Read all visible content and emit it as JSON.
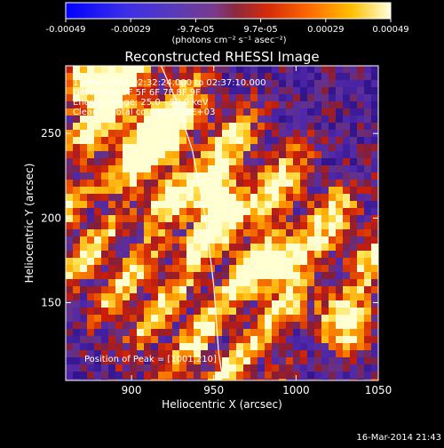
{
  "chart_data": {
    "type": "heatmap",
    "title": "Reconstructed RHESSI Image",
    "xlabel": "Heliocentric X (arcsec)",
    "ylabel": "Heliocentric Y (arcsec)",
    "xlim": [
      860,
      1050
    ],
    "ylim": [
      104,
      290
    ],
    "xticks": [
      900,
      950,
      1000,
      1050
    ],
    "yticks": [
      150,
      200,
      250
    ],
    "colorbar": {
      "ticks": [
        "-0.00049",
        "-0.00029",
        "-9.7e-05",
        "9.7e-05",
        "0.00029",
        "0.00049"
      ],
      "unit_label": "(photons cm⁻² s⁻¹ asec⁻²)",
      "range": [
        -0.00049,
        0.00049
      ],
      "colors": [
        "#0000ff",
        "#4b2bd0",
        "#6a3aa6",
        "#a82a30",
        "#e22a00",
        "#ff7a00",
        "#ffd000",
        "#ffffcc"
      ]
    },
    "annotations": [
      "17-Mar-2014 02:32:24.000 to 02:37:10.000",
      "Detectors: 3F 5F 6F 7F 8F 9F",
      "Energy Range: 25.0 - 50.0 keV",
      "Clean     Total counts: 2.29E+03"
    ],
    "peak_label": "Position of Peak = [1001,210]",
    "limb_line": [
      [
        918,
        290
      ],
      [
        927,
        270
      ],
      [
        937,
        240
      ],
      [
        945,
        200
      ],
      [
        950,
        160
      ],
      [
        953,
        120
      ],
      [
        955,
        108
      ]
    ],
    "bright_ridges": [
      {
        "x0": 865,
        "y0": 290,
        "x1": 1050,
        "y1": 120
      },
      {
        "x0": 875,
        "y0": 255,
        "x1": 985,
        "y1": 150
      },
      {
        "x0": 900,
        "y0": 285,
        "x1": 1045,
        "y1": 180
      },
      {
        "x0": 860,
        "y0": 195,
        "x1": 960,
        "y1": 110
      }
    ]
  },
  "footer": {
    "timestamp": "16-Mar-2014 21:43"
  }
}
